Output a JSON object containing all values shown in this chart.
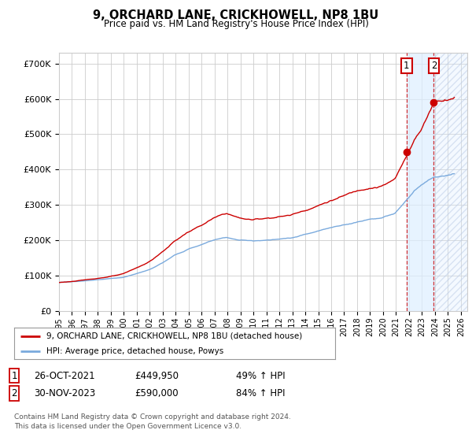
{
  "title": "9, ORCHARD LANE, CRICKHOWELL, NP8 1BU",
  "subtitle": "Price paid vs. HM Land Registry's House Price Index (HPI)",
  "ylabel_ticks": [
    "£0",
    "£100K",
    "£200K",
    "£300K",
    "£400K",
    "£500K",
    "£600K",
    "£700K"
  ],
  "ytick_vals": [
    0,
    100000,
    200000,
    300000,
    400000,
    500000,
    600000,
    700000
  ],
  "ylim": [
    0,
    730000
  ],
  "xlim_start": 1995.0,
  "xlim_end": 2026.5,
  "background_color": "#ffffff",
  "grid_color": "#cccccc",
  "red_line_color": "#cc0000",
  "blue_line_color": "#7aaadd",
  "sale1_date": 2021.82,
  "sale2_date": 2023.92,
  "sale1_price": 449950,
  "sale2_price": 590000,
  "legend_label_red": "9, ORCHARD LANE, CRICKHOWELL, NP8 1BU (detached house)",
  "legend_label_blue": "HPI: Average price, detached house, Powys",
  "annotation1_label": "1",
  "annotation2_label": "2",
  "footnote": "Contains HM Land Registry data © Crown copyright and database right 2024.\nThis data is licensed under the Open Government Licence v3.0.",
  "shade_start": 2021.82,
  "shade_end": 2026.5,
  "xtick_years": [
    1995,
    1996,
    1997,
    1998,
    1999,
    2000,
    2001,
    2002,
    2003,
    2004,
    2005,
    2006,
    2007,
    2008,
    2009,
    2010,
    2011,
    2012,
    2013,
    2014,
    2015,
    2016,
    2017,
    2018,
    2019,
    2020,
    2021,
    2022,
    2023,
    2024,
    2025,
    2026
  ]
}
